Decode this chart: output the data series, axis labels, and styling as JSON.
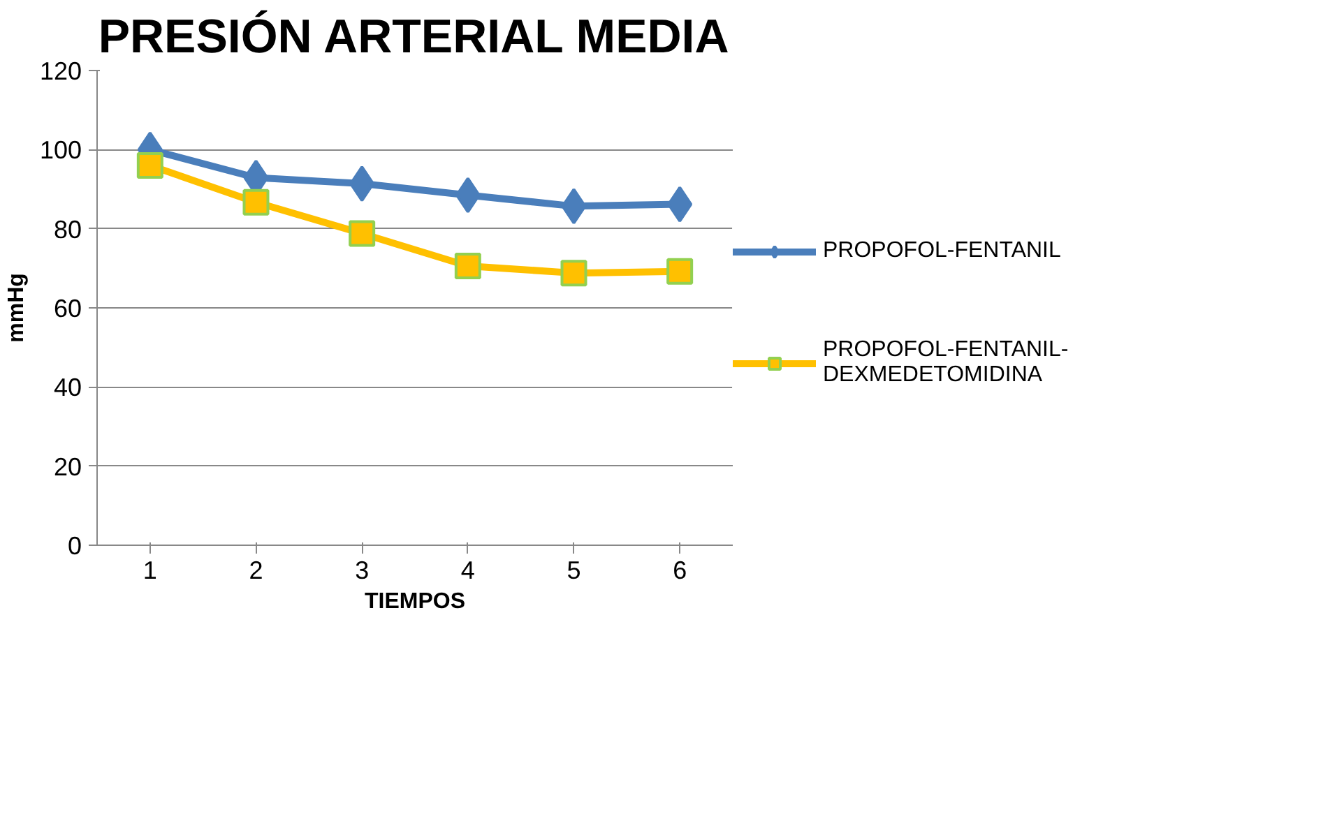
{
  "chart_data": {
    "type": "line",
    "title": "PRESIÓN ARTERIAL MEDIA",
    "xlabel": "TIEMPOS",
    "ylabel": "mmHg",
    "categories": [
      "1",
      "2",
      "3",
      "4",
      "5",
      "6"
    ],
    "series": [
      {
        "name": "PROPOFOL-FENTANIL",
        "color": "#4a7ebb",
        "marker": "diamond",
        "values": [
          100,
          92.9,
          91.4,
          88.5,
          85.7,
          86.2
        ]
      },
      {
        "name": "PROPOFOL-FENTANIL-\nDEXMEDETOMIDINA",
        "color": "#ffc000",
        "marker": "square",
        "values": [
          96,
          86.7,
          78.8,
          70.6,
          68.8,
          69.2
        ]
      }
    ],
    "ylim": [
      0,
      120
    ],
    "yticks": [
      0,
      20,
      40,
      60,
      80,
      100,
      120
    ],
    "grid": "y",
    "legend": "right",
    "line_style": "solid"
  }
}
